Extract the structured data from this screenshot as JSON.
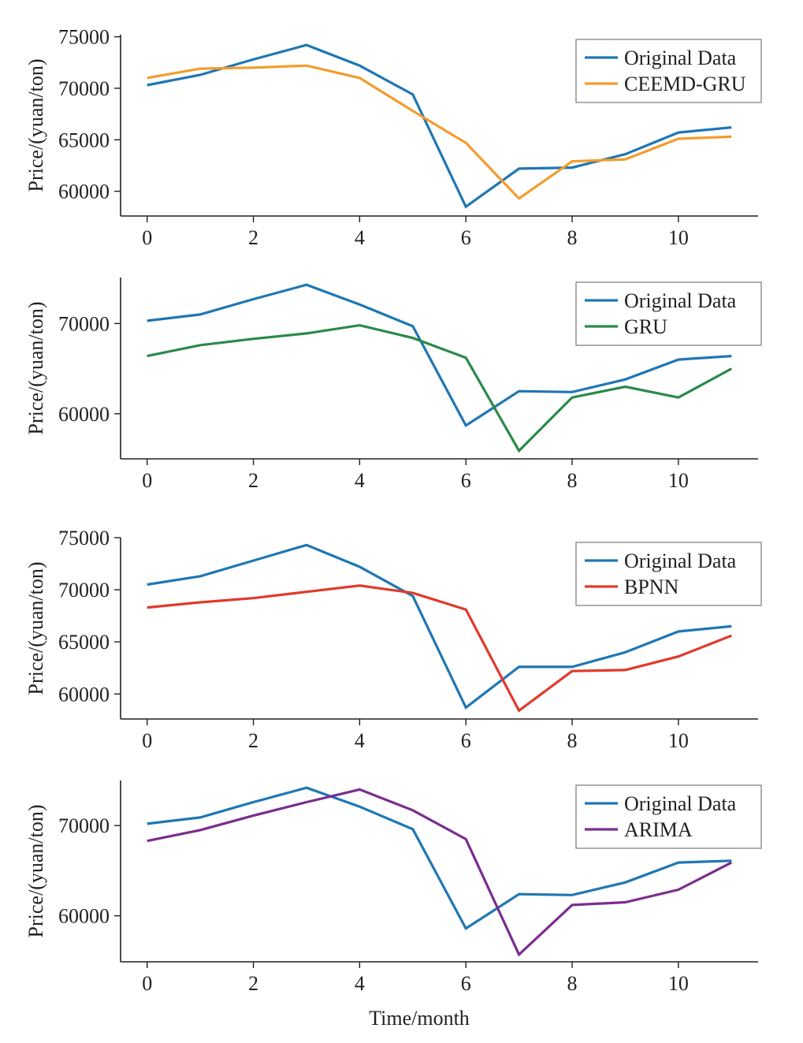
{
  "colors": {
    "original": "#1f77b4",
    "ceemd_gru": "#f39c2c",
    "gru": "#2a8a4a",
    "bpnn": "#e03a2c",
    "arima": "#7b2d8e",
    "axis": "#231f20"
  },
  "figure": {
    "xlabel": "Time/month"
  },
  "chart_data": [
    {
      "type": "line",
      "title": "",
      "xlabel": "",
      "ylabel": "Price/(yuan/ton)",
      "x": [
        0,
        1,
        2,
        3,
        4,
        5,
        6,
        7,
        8,
        9,
        10,
        11
      ],
      "xlim": [
        -0.5,
        11.5
      ],
      "ylim": [
        57600,
        75200
      ],
      "xticks": [
        0,
        2,
        4,
        6,
        8,
        10
      ],
      "yticks": [
        60000,
        65000,
        70000,
        75000
      ],
      "xtick_labels": [
        "0",
        "2",
        "4",
        "6",
        "8",
        "10"
      ],
      "ytick_labels": [
        "60000",
        "65000",
        "70000",
        "75000"
      ],
      "legend_position": "top-right",
      "grid": false,
      "series": [
        {
          "name": "Original Data",
          "color_key": "original",
          "values": [
            70300,
            71300,
            72800,
            74200,
            72200,
            69400,
            58500,
            62200,
            62300,
            63600,
            65700,
            66200
          ]
        },
        {
          "name": "CEEMD-GRU",
          "color_key": "ceemd_gru",
          "values": [
            71000,
            71900,
            72000,
            72200,
            71000,
            67800,
            64700,
            59300,
            62900,
            63100,
            65100,
            65300
          ]
        }
      ]
    },
    {
      "type": "line",
      "title": "",
      "xlabel": "",
      "ylabel": "Price/(yuan/ton)",
      "x": [
        0,
        1,
        2,
        3,
        4,
        5,
        6,
        7,
        8,
        9,
        10,
        11
      ],
      "xlim": [
        -0.5,
        11.5
      ],
      "ylim": [
        55000,
        75100
      ],
      "xticks": [
        0,
        2,
        4,
        6,
        8,
        10
      ],
      "yticks": [
        60000,
        70000
      ],
      "xtick_labels": [
        "0",
        "2",
        "4",
        "6",
        "8",
        "10"
      ],
      "ytick_labels": [
        "60000",
        "70000"
      ],
      "legend_position": "top-right",
      "grid": false,
      "series": [
        {
          "name": "Original Data",
          "color_key": "original",
          "values": [
            70300,
            71000,
            72700,
            74300,
            72100,
            69700,
            58700,
            62500,
            62400,
            63800,
            66000,
            66400
          ]
        },
        {
          "name": "GRU",
          "color_key": "gru",
          "values": [
            66400,
            67600,
            68300,
            68900,
            69800,
            68400,
            66200,
            55900,
            61800,
            63000,
            61800,
            65000
          ]
        }
      ]
    },
    {
      "type": "line",
      "title": "",
      "xlabel": "",
      "ylabel": "Price/(yuan/ton)",
      "x": [
        0,
        1,
        2,
        3,
        4,
        5,
        6,
        7,
        8,
        9,
        10,
        11
      ],
      "xlim": [
        -0.5,
        11.5
      ],
      "ylim": [
        57600,
        75000
      ],
      "xticks": [
        0,
        2,
        4,
        6,
        8,
        10
      ],
      "yticks": [
        60000,
        65000,
        70000,
        75000
      ],
      "xtick_labels": [
        "0",
        "2",
        "4",
        "6",
        "8",
        "10"
      ],
      "ytick_labels": [
        "60000",
        "65000",
        "70000",
        "75000"
      ],
      "legend_position": "top-right",
      "grid": false,
      "series": [
        {
          "name": "Original Data",
          "color_key": "original",
          "values": [
            70500,
            71300,
            72800,
            74300,
            72200,
            69400,
            58700,
            62600,
            62600,
            64000,
            66000,
            66500
          ]
        },
        {
          "name": "BPNN",
          "color_key": "bpnn",
          "values": [
            68300,
            68800,
            69200,
            69800,
            70400,
            69700,
            68100,
            58400,
            62200,
            62300,
            63600,
            65600
          ]
        }
      ]
    },
    {
      "type": "line",
      "title": "",
      "xlabel": "Time/month",
      "ylabel": "Price/(yuan/ton)",
      "x": [
        0,
        1,
        2,
        3,
        4,
        5,
        6,
        7,
        8,
        9,
        10,
        11
      ],
      "xlim": [
        -0.5,
        11.5
      ],
      "ylim": [
        54900,
        75000
      ],
      "xticks": [
        0,
        2,
        4,
        6,
        8,
        10
      ],
      "yticks": [
        60000,
        70000
      ],
      "xtick_labels": [
        "0",
        "2",
        "4",
        "6",
        "8",
        "10"
      ],
      "ytick_labels": [
        "60000",
        "70000"
      ],
      "legend_position": "top-right",
      "grid": false,
      "series": [
        {
          "name": "Original Data",
          "color_key": "original",
          "values": [
            70200,
            70900,
            72600,
            74200,
            72100,
            69600,
            58600,
            62400,
            62300,
            63700,
            65900,
            66100
          ]
        },
        {
          "name": "ARIMA",
          "color_key": "arima",
          "values": [
            68300,
            69500,
            71100,
            72600,
            74000,
            71700,
            68500,
            55700,
            61200,
            61500,
            62900,
            65900
          ]
        }
      ]
    }
  ]
}
